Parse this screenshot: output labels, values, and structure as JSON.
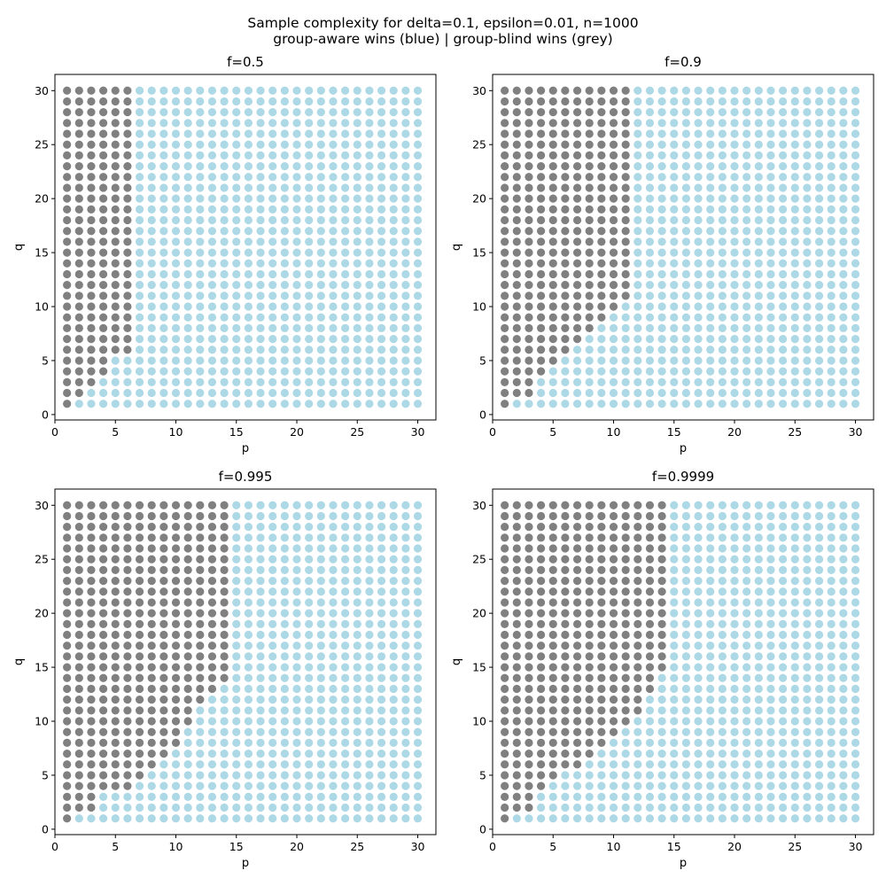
{
  "figure": {
    "title_line1": "Sample complexity for delta=0.1, epsilon=0.01, n=1000",
    "title_line2": "group-aware wins (blue) | group-blind wins (grey)"
  },
  "colors": {
    "group_aware": "#add8e6",
    "group_blind": "#808080"
  },
  "chart_data": [
    {
      "type": "scatter",
      "title": "f=0.5",
      "xlabel": "p",
      "ylabel": "q",
      "xlim": [
        0,
        31.5
      ],
      "ylim": [
        -0.5,
        31.5
      ],
      "xticks": [
        0,
        5,
        10,
        15,
        20,
        25,
        30
      ],
      "yticks": [
        0,
        5,
        10,
        15,
        20,
        25,
        30
      ],
      "grid_p": [
        1,
        30
      ],
      "grid_q": [
        1,
        30
      ],
      "rule": "point (p, q) is group-blind (grey) when p <= blind_max_p_by_q[q-1], otherwise group-aware (blue)",
      "blind_max_p_by_q": [
        1,
        2,
        3,
        4,
        4,
        6,
        6,
        6,
        6,
        6,
        6,
        6,
        6,
        6,
        6,
        6,
        6,
        6,
        6,
        6,
        6,
        6,
        6,
        6,
        6,
        6,
        6,
        6,
        6,
        6
      ]
    },
    {
      "type": "scatter",
      "title": "f=0.9",
      "xlabel": "p",
      "ylabel": "q",
      "xlim": [
        0,
        31.5
      ],
      "ylim": [
        -0.5,
        31.5
      ],
      "xticks": [
        0,
        5,
        10,
        15,
        20,
        25,
        30
      ],
      "yticks": [
        0,
        5,
        10,
        15,
        20,
        25,
        30
      ],
      "grid_p": [
        1,
        30
      ],
      "grid_q": [
        1,
        30
      ],
      "rule": "point (p, q) is group-blind (grey) when p <= blind_max_p_by_q[q-1], otherwise group-aware (blue)",
      "blind_max_p_by_q": [
        1,
        3,
        3,
        4,
        5,
        6,
        7,
        8,
        9,
        10,
        11,
        11,
        11,
        11,
        11,
        11,
        11,
        11,
        11,
        11,
        11,
        11,
        11,
        11,
        11,
        11,
        11,
        11,
        11,
        11
      ]
    },
    {
      "type": "scatter",
      "title": "f=0.995",
      "xlabel": "p",
      "ylabel": "q",
      "xlim": [
        0,
        31.5
      ],
      "ylim": [
        -0.5,
        31.5
      ],
      "xticks": [
        0,
        5,
        10,
        15,
        20,
        25,
        30
      ],
      "yticks": [
        0,
        5,
        10,
        15,
        20,
        25,
        30
      ],
      "grid_p": [
        1,
        30
      ],
      "grid_q": [
        1,
        30
      ],
      "rule": "point (p, q) is group-blind (grey) when p <= blind_max_p_by_q[q-1], otherwise group-aware (blue)",
      "blind_max_p_by_q": [
        1,
        3,
        3,
        6,
        7,
        8,
        9,
        10,
        10,
        11,
        11,
        12,
        13,
        14,
        14,
        14,
        14,
        14,
        14,
        14,
        14,
        14,
        14,
        14,
        14,
        14,
        14,
        14,
        14,
        14
      ]
    },
    {
      "type": "scatter",
      "title": "f=0.9999",
      "xlabel": "p",
      "ylabel": "q",
      "xlim": [
        0,
        31.5
      ],
      "ylim": [
        -0.5,
        31.5
      ],
      "xticks": [
        0,
        5,
        10,
        15,
        20,
        25,
        30
      ],
      "yticks": [
        0,
        5,
        10,
        15,
        20,
        25,
        30
      ],
      "grid_p": [
        1,
        30
      ],
      "grid_q": [
        1,
        30
      ],
      "rule": "point (p, q) is group-blind (grey) when p <= blind_max_p_by_q[q-1], otherwise group-aware (blue)",
      "blind_max_p_by_q": [
        1,
        3,
        3,
        4,
        5,
        7,
        8,
        9,
        10,
        11,
        12,
        12,
        13,
        13,
        14,
        14,
        14,
        14,
        14,
        14,
        14,
        14,
        14,
        14,
        14,
        14,
        14,
        14,
        14,
        14
      ]
    }
  ]
}
